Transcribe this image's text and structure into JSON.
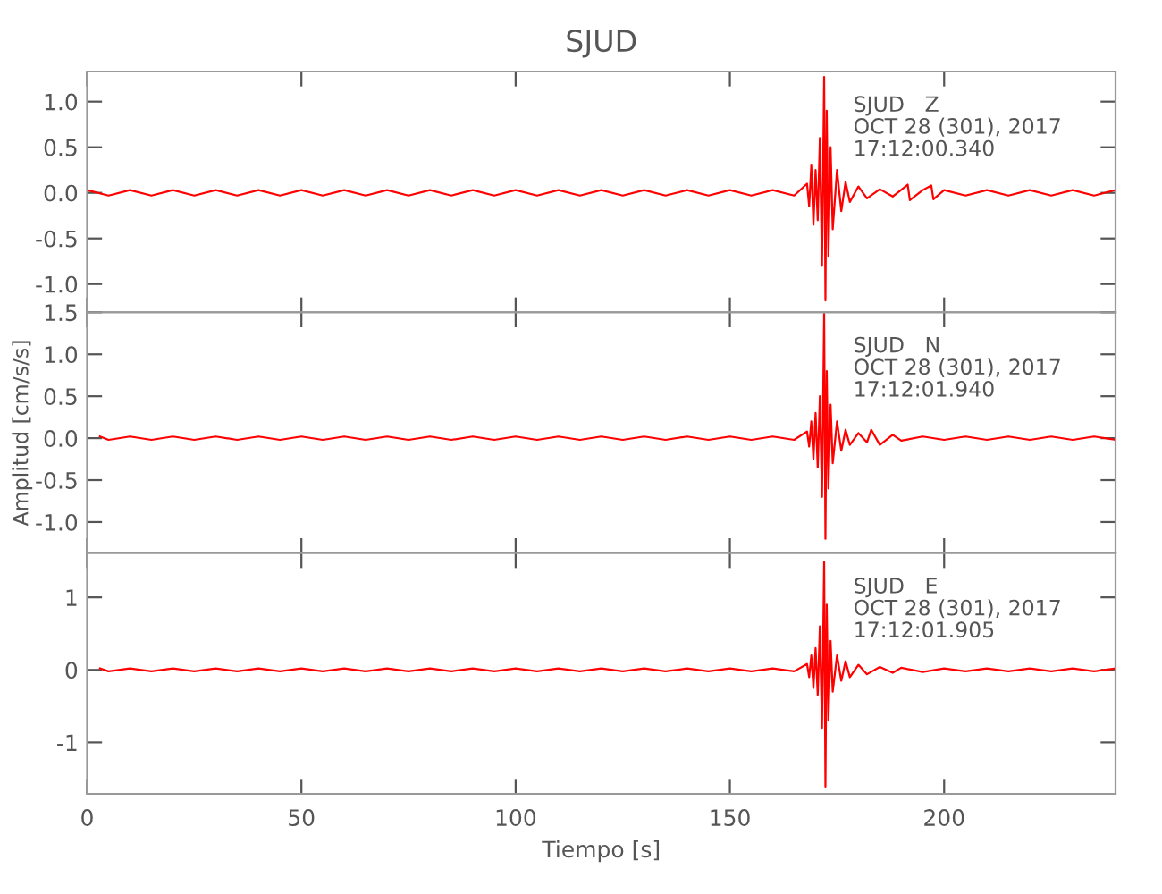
{
  "chart_data": [
    {
      "type": "line",
      "title": "SJUD",
      "tick_labels": "y",
      "xlim": [
        0,
        240
      ],
      "ylim": [
        -1.31,
        1.33
      ],
      "yticks": [
        {
          "value": -1,
          "label": "-1.0"
        },
        -0.5,
        {
          "value": 0,
          "label": "0.0"
        },
        0.5,
        {
          "value": 1,
          "label": "1.0"
        }
      ],
      "grid": false,
      "annotations": [
        "SJUD   Z\nOCT 28 (301), 2017\n17:12:00.340"
      ],
      "series": [
        {
          "color": "#ff0000",
          "x": [
            0,
            5,
            10,
            15,
            20,
            25,
            30,
            35,
            40,
            45,
            50,
            55,
            60,
            65,
            70,
            75,
            80,
            85,
            90,
            95,
            100,
            105,
            110,
            115,
            120,
            125,
            130,
            135,
            140,
            145,
            150,
            155,
            160,
            165,
            168,
            168.5,
            169,
            169.5,
            170,
            170.5,
            171,
            171.5,
            172,
            172.3,
            172.6,
            173,
            173.5,
            174,
            175,
            176,
            177,
            178,
            180,
            182,
            185,
            188,
            191.5,
            192,
            195,
            197,
            197.5,
            200,
            205,
            210,
            215,
            220,
            225,
            230,
            235,
            240
          ],
          "values": [
            0.03,
            -0.03,
            0.03,
            -0.03,
            0.03,
            -0.03,
            0.03,
            -0.03,
            0.03,
            -0.03,
            0.03,
            -0.03,
            0.03,
            -0.03,
            0.03,
            -0.03,
            0.03,
            -0.03,
            0.03,
            -0.03,
            0.03,
            -0.03,
            0.03,
            -0.03,
            0.03,
            -0.03,
            0.03,
            -0.03,
            0.03,
            -0.03,
            0.03,
            -0.03,
            0.03,
            -0.03,
            0.1,
            -0.15,
            0.3,
            -0.35,
            0.25,
            -0.3,
            0.6,
            -0.8,
            1.27,
            -1.18,
            0.9,
            -0.7,
            0.5,
            -0.4,
            0.25,
            -0.2,
            0.12,
            -0.1,
            0.07,
            -0.06,
            0.04,
            -0.04,
            0.09,
            -0.08,
            0.03,
            0.08,
            -0.07,
            0.03,
            -0.03,
            0.03,
            -0.03,
            0.03,
            -0.03,
            0.03,
            -0.03,
            0.03
          ]
        }
      ]
    },
    {
      "type": "line",
      "ylabel": "Amplitud [cm/s/s]",
      "tick_labels": "y",
      "xlim": [
        0,
        240
      ],
      "ylim": [
        -1.37,
        1.5
      ],
      "yticks": [
        {
          "value": -1,
          "label": "-1.0"
        },
        -0.5,
        {
          "value": 0,
          "label": "0.0"
        },
        0.5,
        {
          "value": 1,
          "label": "1.0"
        },
        1.5
      ],
      "grid": false,
      "annotations": [
        "SJUD   N\nOCT 28 (301), 2017\n17:12:01.940"
      ],
      "series": [
        {
          "color": "#ff0000",
          "x": [
            3,
            5,
            10,
            15,
            20,
            25,
            30,
            35,
            40,
            45,
            50,
            55,
            60,
            65,
            70,
            75,
            80,
            85,
            90,
            95,
            100,
            105,
            110,
            115,
            120,
            125,
            130,
            135,
            140,
            145,
            150,
            155,
            160,
            165,
            168,
            168.5,
            169,
            169.5,
            170,
            170.5,
            171,
            171.5,
            172,
            172.3,
            172.6,
            173,
            173.5,
            174,
            175,
            176,
            177,
            178,
            180,
            182,
            183,
            185,
            188,
            190,
            195,
            200,
            205,
            210,
            215,
            220,
            225,
            230,
            235,
            240
          ],
          "values": [
            0.02,
            -0.02,
            0.02,
            -0.02,
            0.02,
            -0.02,
            0.02,
            -0.02,
            0.02,
            -0.02,
            0.02,
            -0.02,
            0.02,
            -0.02,
            0.02,
            -0.02,
            0.02,
            -0.02,
            0.02,
            -0.02,
            0.02,
            -0.02,
            0.02,
            -0.02,
            0.02,
            -0.02,
            0.02,
            -0.02,
            0.02,
            -0.02,
            0.02,
            -0.02,
            0.02,
            -0.02,
            0.08,
            -0.1,
            0.2,
            -0.25,
            0.3,
            -0.35,
            0.5,
            -0.7,
            1.48,
            -1.2,
            0.8,
            -0.6,
            0.4,
            -0.3,
            0.2,
            -0.15,
            0.1,
            -0.08,
            0.06,
            -0.05,
            0.1,
            -0.08,
            0.04,
            -0.03,
            0.02,
            -0.02,
            0.02,
            -0.02,
            0.02,
            -0.02,
            0.02,
            -0.02,
            0.02,
            -0.02
          ]
        }
      ]
    },
    {
      "type": "line",
      "xlabel": "Tiempo [s]",
      "xlim": [
        0,
        240
      ],
      "xticks": [
        0,
        50,
        100,
        150,
        200
      ],
      "ylim": [
        -1.71,
        1.61
      ],
      "yticks": [
        -1,
        0,
        1
      ],
      "grid": false,
      "annotations": [
        "SJUD   E\nOCT 28 (301), 2017\n17:12:01.905"
      ],
      "series": [
        {
          "color": "#ff0000",
          "x": [
            3,
            5,
            10,
            15,
            20,
            25,
            30,
            35,
            40,
            45,
            50,
            55,
            60,
            65,
            70,
            75,
            80,
            85,
            90,
            95,
            100,
            105,
            110,
            115,
            120,
            125,
            130,
            135,
            140,
            145,
            150,
            155,
            160,
            165,
            168,
            168.5,
            169,
            169.5,
            170,
            170.5,
            171,
            171.5,
            172,
            172.3,
            172.6,
            173,
            173.5,
            174,
            175,
            176,
            177,
            178,
            180,
            182,
            185,
            188,
            190,
            195,
            200,
            205,
            210,
            215,
            220,
            225,
            230,
            235,
            240
          ],
          "values": [
            0.02,
            -0.02,
            0.02,
            -0.02,
            0.02,
            -0.02,
            0.02,
            -0.02,
            0.02,
            -0.02,
            0.02,
            -0.02,
            0.02,
            -0.02,
            0.02,
            -0.02,
            0.02,
            -0.02,
            0.02,
            -0.02,
            0.02,
            -0.02,
            0.02,
            -0.02,
            0.02,
            -0.02,
            0.02,
            -0.02,
            0.02,
            -0.02,
            0.02,
            -0.02,
            0.02,
            -0.02,
            0.08,
            -0.1,
            0.2,
            -0.25,
            0.3,
            -0.35,
            0.6,
            -0.8,
            1.49,
            -1.61,
            0.9,
            -0.7,
            0.4,
            -0.3,
            0.2,
            -0.15,
            0.12,
            -0.1,
            0.07,
            -0.06,
            0.04,
            -0.04,
            0.03,
            -0.03,
            0.02,
            -0.02,
            0.02,
            -0.02,
            0.02,
            -0.02,
            0.02,
            -0.02,
            0.02
          ]
        }
      ]
    }
  ]
}
